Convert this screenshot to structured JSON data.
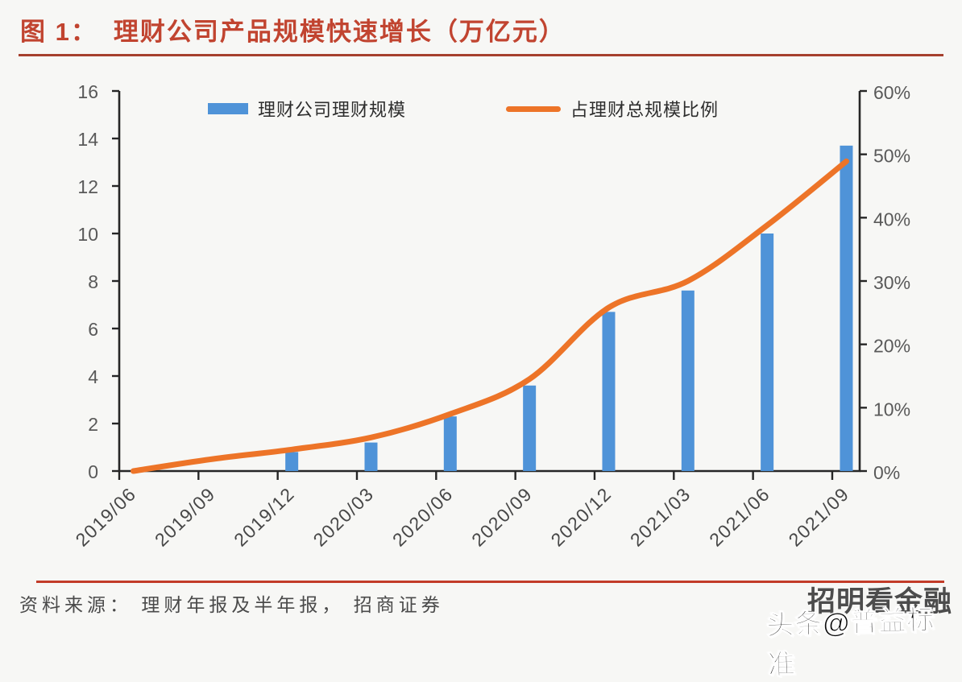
{
  "header": {
    "figure_label": "图 1：",
    "title": "理财公司产品规模快速增长（万亿元）"
  },
  "footer": {
    "source_note": "资料来源： 理财年报及半年报， 招商证券"
  },
  "watermark": {
    "back_text": "招明看金融",
    "front_text": "头条@普益标准"
  },
  "colors": {
    "bar": "#4f93d8",
    "line": "#ed7428",
    "title": "#c14430",
    "title_rule": "#a6402e",
    "source_rule": "#c23b28",
    "axis": "#262626",
    "axis_label": "#595959",
    "x_label": "#474747",
    "legend_text": "#2d2d2d",
    "source_text": "#4a4a4a",
    "page_bg": "#f7f7f5"
  },
  "chart_data": {
    "type": "bar+line",
    "categories": [
      "2019/06",
      "2019/09",
      "2019/12",
      "2020/03",
      "2020/06",
      "2020/09",
      "2020/12",
      "2021/03",
      "2021/06",
      "2021/09"
    ],
    "series": [
      {
        "name": "理财公司理财规模",
        "type": "bar",
        "axis": "left",
        "values": [
          null,
          null,
          0.8,
          1.2,
          2.3,
          3.6,
          6.7,
          7.6,
          10.0,
          13.7
        ]
      },
      {
        "name": "占理财总规模比例",
        "type": "line",
        "axis": "right",
        "unit": "%",
        "values": [
          0,
          1.9,
          3.4,
          5.3,
          9.0,
          14.5,
          25.8,
          30.0,
          38.8,
          48.9
        ]
      }
    ],
    "left_axis": {
      "min": 0,
      "max": 16,
      "step": 2,
      "tick_labels": [
        "0",
        "2",
        "4",
        "6",
        "8",
        "10",
        "12",
        "14",
        "16"
      ]
    },
    "right_axis": {
      "min": 0,
      "max": 60,
      "step": 10,
      "tick_labels": [
        "0%",
        "10%",
        "20%",
        "30%",
        "40%",
        "50%",
        "60%"
      ]
    },
    "legend_position": "top",
    "grid": false
  }
}
